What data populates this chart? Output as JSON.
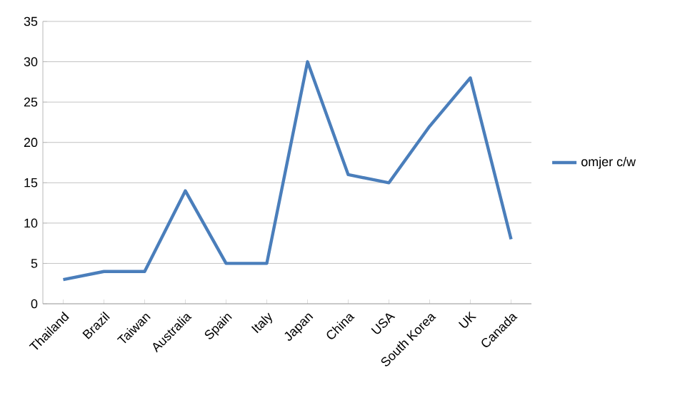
{
  "chart_data": {
    "type": "line",
    "categories": [
      "Thailand",
      "Brazil",
      "Taiwan",
      "Australia",
      "Spain",
      "Italy",
      "Japan",
      "China",
      "USA",
      "South Korea",
      "UK",
      "Canada"
    ],
    "series": [
      {
        "name": "omjer c/w",
        "color": "#4a7ebb",
        "values": [
          3,
          4,
          4,
          14,
          5,
          5,
          30,
          16,
          15,
          22,
          28,
          8
        ]
      }
    ],
    "ylim": [
      0,
      35
    ],
    "yticks": [
      0,
      5,
      10,
      15,
      20,
      25,
      30,
      35
    ],
    "grid": "y",
    "legend": "right",
    "marker": "none",
    "line_style": "solid"
  }
}
